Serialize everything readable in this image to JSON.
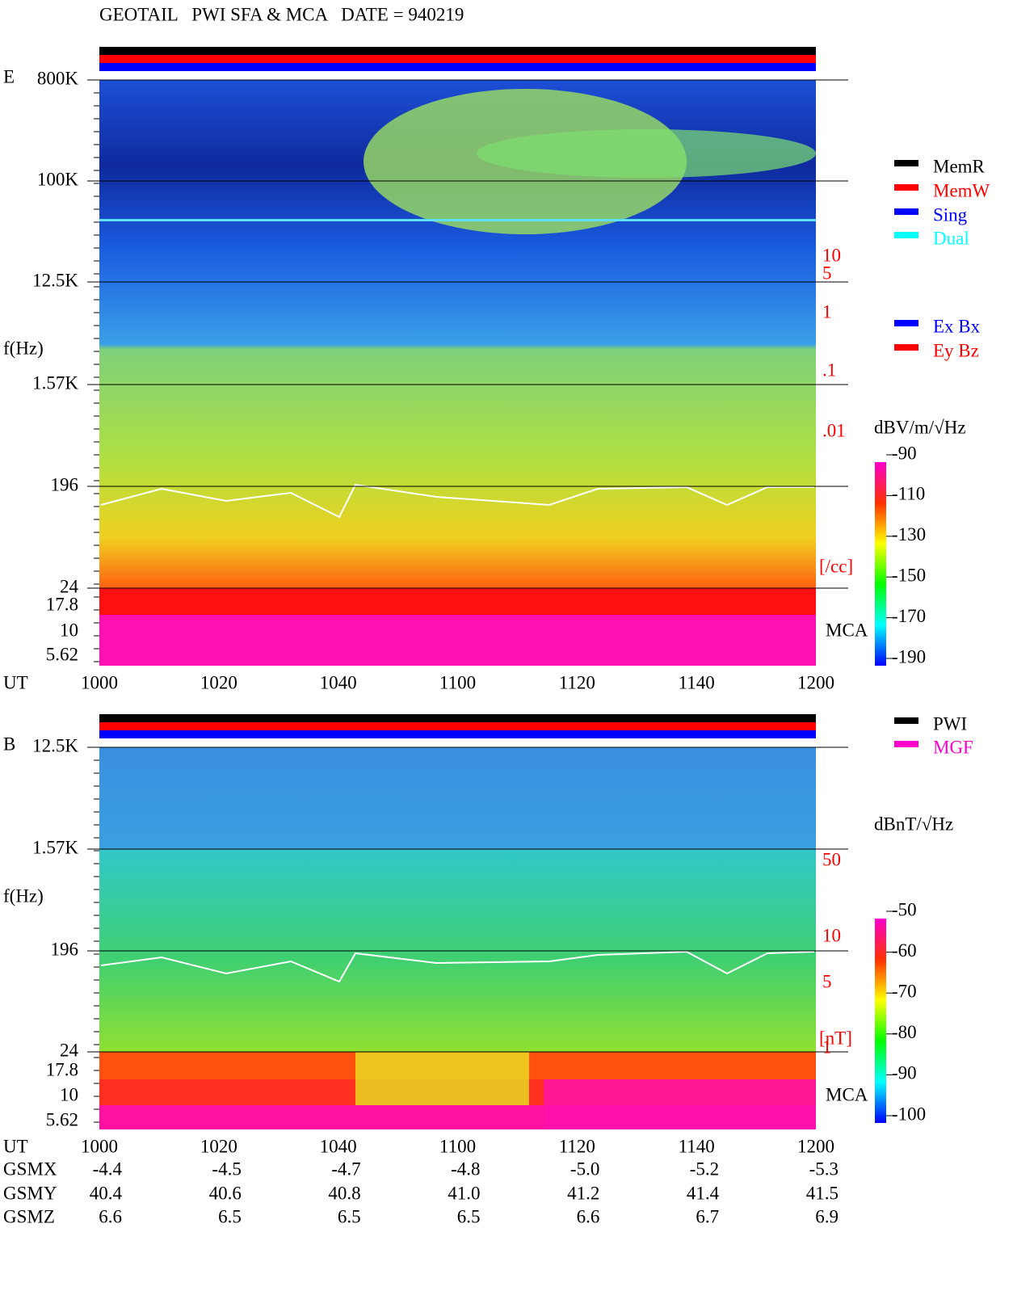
{
  "header": {
    "title": "GEOTAIL   PWI SFA & MCA   DATE = 940219"
  },
  "panels": [
    {
      "component": "E",
      "freq_label": "f(Hz)",
      "freq_ticks": [
        "800K",
        "100K",
        "12.5K",
        "1.57K",
        "196",
        "24",
        "17.8",
        "10",
        "5.62"
      ],
      "density_ticks": [
        "10",
        "5",
        "1",
        ".1",
        ".01"
      ],
      "density_unit": "[/cc]",
      "mca_label": "MCA",
      "time_label": "UT",
      "time_ticks": [
        "1000",
        "1020",
        "1040",
        "1100",
        "1120",
        "1140",
        "1200"
      ],
      "unit": "dBV/m/√Hz",
      "colorbar_ticks": [
        -90,
        -110,
        -130,
        -150,
        -170,
        -190
      ],
      "legend": [
        {
          "name": "MemR",
          "color": "#000000"
        },
        {
          "name": "MemW",
          "color": "#ff0000"
        },
        {
          "name": "Sing",
          "color": "#0000ff"
        },
        {
          "name": "Dual",
          "color": "#00ffff"
        }
      ],
      "legend2": [
        {
          "name": "Ex Bx",
          "color": "#0000ff"
        },
        {
          "name": "Ey Bz",
          "color": "#ff0000"
        }
      ]
    },
    {
      "component": "B",
      "freq_label": "f(Hz)",
      "freq_ticks": [
        "12.5K",
        "1.57K",
        "196",
        "24",
        "17.8",
        "10",
        "5.62"
      ],
      "density_ticks": [
        "50",
        "10",
        "5",
        "1"
      ],
      "density_unit": "[nT]",
      "mca_label": "MCA",
      "time_label": "UT",
      "time_ticks": [
        "1000",
        "1020",
        "1040",
        "1100",
        "1120",
        "1140",
        "1200"
      ],
      "unit": "dBnT/√Hz",
      "colorbar_ticks": [
        -50,
        -60,
        -70,
        -80,
        -90,
        -100
      ],
      "legend": [
        {
          "name": "PWI",
          "color": "#000000"
        },
        {
          "name": "MGF",
          "color": "#ff00cc"
        }
      ]
    }
  ],
  "orbit": {
    "rows": [
      {
        "label": "GSMX",
        "values": [
          "-4.4",
          "-4.5",
          "-4.7",
          "-4.8",
          "-5.0",
          "-5.2",
          "-5.3"
        ]
      },
      {
        "label": "GSMY",
        "values": [
          "40.4",
          "40.6",
          "40.8",
          "41.0",
          "41.2",
          "41.4",
          "41.5"
        ]
      },
      {
        "label": "GSMZ",
        "values": [
          "6.6",
          "6.5",
          "6.5",
          "6.5",
          "6.6",
          "6.7",
          "6.9"
        ]
      }
    ]
  }
}
